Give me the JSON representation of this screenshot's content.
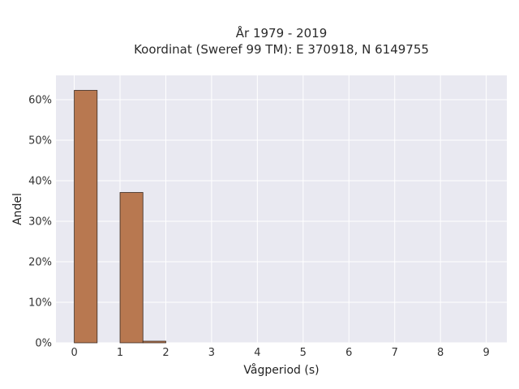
{
  "chart_data": {
    "type": "bar",
    "title": "År 1979 - 2019",
    "subtitle": "Koordinat (Sweref 99 TM): E 370918, N 6149755",
    "xlabel": "Vågperiod (s)",
    "ylabel": "Andel",
    "bin_width": 0.5,
    "bins": [
      {
        "x0": 0.0,
        "x1": 0.5,
        "value": 0.623
      },
      {
        "x0": 0.5,
        "x1": 1.0,
        "value": 0.0
      },
      {
        "x0": 1.0,
        "x1": 1.5,
        "value": 0.371
      },
      {
        "x0": 1.5,
        "x1": 2.0,
        "value": 0.004
      }
    ],
    "xlim": [
      -0.4,
      9.45
    ],
    "ylim": [
      0,
      0.66
    ],
    "xticks": [
      0,
      1,
      2,
      3,
      4,
      5,
      6,
      7,
      8,
      9
    ],
    "xtick_labels": [
      "0",
      "1",
      "2",
      "3",
      "4",
      "5",
      "6",
      "7",
      "8",
      "9"
    ],
    "yticks": [
      0,
      0.1,
      0.2,
      0.3,
      0.4,
      0.5,
      0.6
    ],
    "ytick_labels": [
      "0%",
      "10%",
      "20%",
      "30%",
      "40%",
      "50%",
      "60%"
    ],
    "grid": true,
    "bar_color": "#b87850",
    "bar_edge_color": "#3a2a20",
    "plot_background": "#e9e9f1",
    "grid_color": "#ffffff"
  }
}
